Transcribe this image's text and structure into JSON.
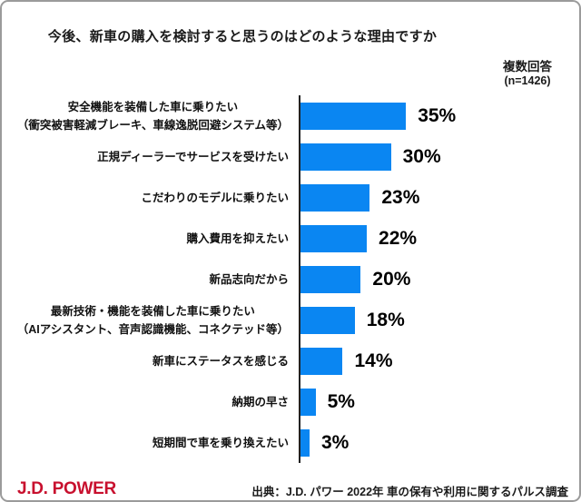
{
  "title": "今後、新車の購入を検討すると思うのはどのような理由ですか",
  "note": {
    "label": "複数回答",
    "sample": "(n=1426)"
  },
  "chart_data": {
    "type": "bar",
    "orientation": "horizontal",
    "title": "今後、新車の購入を検討すると思うのはどのような理由ですか",
    "categories": [
      {
        "label": "安全機能を装備した車に乗りたい",
        "sub": "（衝突被害軽減ブレーキ、車線逸脱回避システム等）"
      },
      {
        "label": "正規ディーラーでサービスを受けたい",
        "sub": ""
      },
      {
        "label": "こだわりのモデルに乗りたい",
        "sub": ""
      },
      {
        "label": "購入費用を抑えたい",
        "sub": ""
      },
      {
        "label": "新品志向だから",
        "sub": ""
      },
      {
        "label": "最新技術・機能を装備した車に乗りたい",
        "sub": "（AIアシスタント、音声認識機能、コネクテッド等）"
      },
      {
        "label": "新車にステータスを感じる",
        "sub": ""
      },
      {
        "label": "納期の早さ",
        "sub": ""
      },
      {
        "label": "短期間で車を乗り換えたい",
        "sub": ""
      }
    ],
    "values": [
      35,
      30,
      23,
      22,
      20,
      18,
      14,
      5,
      3
    ],
    "value_labels": [
      "35%",
      "30%",
      "23%",
      "22%",
      "20%",
      "18%",
      "14%",
      "5%",
      "3%"
    ],
    "unit": "%",
    "xlim": [
      0,
      40
    ],
    "grid": false,
    "legend": "none",
    "bar_color": "#0a86f2",
    "axis_color": "#222222"
  },
  "footer": {
    "logo": "J.D. POWER",
    "logo_color": "#c8102e",
    "source": "出典：J.D. パワー 2022年 車の保有や利用に関するパルス調査"
  }
}
